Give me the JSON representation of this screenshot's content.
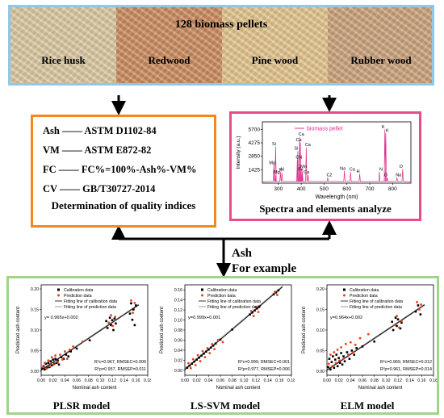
{
  "pellets": {
    "title": "128 biomass pellets",
    "types": [
      {
        "name": "Rice husk",
        "color": "#d9c7a0"
      },
      {
        "name": "Redwood",
        "color": "#c98a5e"
      },
      {
        "name": "Pine wood",
        "color": "#e2c48c"
      },
      {
        "name": "Rubber wood",
        "color": "#caa17a"
      }
    ]
  },
  "quality": {
    "rows": [
      {
        "index": "Ash",
        "dash": "——",
        "standard": "ASTM D1102-84"
      },
      {
        "index": "VM",
        "dash": "——",
        "standard": "ASTM E872-82"
      },
      {
        "index": "FC",
        "dash": "——",
        "standard": "FC%=100%-Ash%-VM%"
      },
      {
        "index": "CV",
        "dash": "——",
        "standard": "GB/T30727-2014"
      }
    ],
    "caption": "Determination of quality indices"
  },
  "spectra": {
    "caption": "Spectra and elements analyze",
    "chart_data": {
      "type": "line",
      "legend": "biomass pellet",
      "xlabel": "Wavelength (nm)",
      "ylabel": "Intensity (a.u.)",
      "xlim": [
        230,
        880
      ],
      "ylim": [
        0,
        6500
      ],
      "xticks": [
        300,
        400,
        500,
        600,
        700,
        800
      ],
      "yticks": [
        1425,
        2850,
        4275,
        5700
      ],
      "peaks": [
        {
          "x": 280,
          "y": 1900,
          "label": "Mg"
        },
        {
          "x": 286,
          "y": 900,
          "label": "Mg"
        },
        {
          "x": 288,
          "y": 3900,
          "label": "Si"
        },
        {
          "x": 309,
          "y": 1200,
          "label": "Al"
        },
        {
          "x": 316,
          "y": 1100,
          "label": "Ti"
        },
        {
          "x": 383,
          "y": 2500,
          "label": "CN"
        },
        {
          "x": 385,
          "y": 3400,
          "label": "Si"
        },
        {
          "x": 393,
          "y": 4900,
          "label": "Ca"
        },
        {
          "x": 396,
          "y": 4300,
          "label": "Ca"
        },
        {
          "x": 403,
          "y": 1500,
          "label": "Mn"
        },
        {
          "x": 405,
          "y": 1200,
          "label": "Fe"
        },
        {
          "x": 422,
          "y": 3800,
          "label": "Ca"
        },
        {
          "x": 430,
          "y": 900,
          "label": "Ca"
        },
        {
          "x": 516,
          "y": 600,
          "label": "C2"
        },
        {
          "x": 589,
          "y": 1300,
          "label": "Na"
        },
        {
          "x": 616,
          "y": 1200,
          "label": "Ca"
        },
        {
          "x": 656,
          "y": 1000,
          "label": "H"
        },
        {
          "x": 742,
          "y": 1200,
          "label": "N"
        },
        {
          "x": 766,
          "y": 5700,
          "label": "K"
        },
        {
          "x": 770,
          "y": 5300,
          "label": "K"
        },
        {
          "x": 777,
          "y": 600,
          "label": "O"
        },
        {
          "x": 819,
          "y": 600,
          "label": "Na"
        },
        {
          "x": 844,
          "y": 1500,
          "label": "O"
        }
      ]
    }
  },
  "example": {
    "line1": "Ash",
    "line2": "For example"
  },
  "models": [
    {
      "caption": "PLSR model",
      "equation": "y= 0.965x+0.002",
      "stats1": "R²c=0.967, RMSEC=0.009",
      "stats2": "R²p=0.957, RMSEP=0.011",
      "chart_data": {
        "type": "scatter",
        "xlabel": "Nominal ash content",
        "ylabel": "Predicted ash content",
        "xlim": [
          0,
          0.18
        ],
        "ylim": [
          -0.01,
          0.21
        ],
        "xticks": [
          0.0,
          0.02,
          0.04,
          0.06,
          0.08,
          0.1,
          0.12,
          0.14,
          0.16,
          0.18
        ],
        "yticks": [
          0.0,
          0.05,
          0.1,
          0.15,
          0.2
        ],
        "slope": 0.965,
        "intercept": 0.002,
        "legend": [
          "Calibration data",
          "Prediction data",
          "Fitting line of calibration data",
          "Fitting line of prediction data"
        ],
        "calibration": [
          [
            0.002,
            0.006
          ],
          [
            0.004,
            0.012
          ],
          [
            0.006,
            0.004
          ],
          [
            0.008,
            0.018
          ],
          [
            0.01,
            0.008
          ],
          [
            0.012,
            0.02
          ],
          [
            0.014,
            0.01
          ],
          [
            0.016,
            0.024
          ],
          [
            0.018,
            0.014
          ],
          [
            0.02,
            0.028
          ],
          [
            0.022,
            0.018
          ],
          [
            0.024,
            0.03
          ],
          [
            0.026,
            0.02
          ],
          [
            0.028,
            0.026
          ],
          [
            0.03,
            0.016
          ],
          [
            0.034,
            0.034
          ],
          [
            0.038,
            0.03
          ],
          [
            0.042,
            0.04
          ],
          [
            0.046,
            0.036
          ],
          [
            0.05,
            0.048
          ],
          [
            0.06,
            0.055
          ],
          [
            0.082,
            0.075
          ],
          [
            0.11,
            0.122
          ],
          [
            0.112,
            0.105
          ],
          [
            0.116,
            0.13
          ],
          [
            0.118,
            0.112
          ],
          [
            0.12,
            0.124
          ],
          [
            0.122,
            0.1
          ],
          [
            0.124,
            0.128
          ],
          [
            0.126,
            0.116
          ],
          [
            0.15,
            0.14
          ],
          [
            0.152,
            0.165
          ],
          [
            0.154,
            0.125
          ],
          [
            0.156,
            0.15
          ],
          [
            0.158,
            0.112
          ],
          [
            0.16,
            0.16
          ]
        ],
        "prediction": [
          [
            0.003,
            0.01
          ],
          [
            0.006,
            0.02
          ],
          [
            0.009,
            0.006
          ],
          [
            0.012,
            0.026
          ],
          [
            0.015,
            0.012
          ],
          [
            0.018,
            0.034
          ],
          [
            0.021,
            0.016
          ],
          [
            0.024,
            0.038
          ],
          [
            0.028,
            0.022
          ],
          [
            0.032,
            0.04
          ],
          [
            0.036,
            0.028
          ],
          [
            0.04,
            0.048
          ],
          [
            0.044,
            0.03
          ],
          [
            0.048,
            0.052
          ],
          [
            0.054,
            0.06
          ],
          [
            0.07,
            0.072
          ],
          [
            0.114,
            0.118
          ],
          [
            0.118,
            0.136
          ],
          [
            0.121,
            0.11
          ],
          [
            0.125,
            0.132
          ],
          [
            0.152,
            0.172
          ],
          [
            0.155,
            0.142
          ],
          [
            0.158,
            0.166
          ]
        ]
      }
    },
    {
      "caption": "LS-SVM model",
      "equation": "y=0.999x+0.001",
      "stats1": "R²c=0.999, RMSEC=0.001",
      "stats2": "R²p=0.977, RMSEP=0.006",
      "chart_data": {
        "type": "scatter",
        "xlabel": "Nominal ash content",
        "ylabel": "Predicted ash content",
        "xlim": [
          0,
          0.18
        ],
        "ylim": [
          -0.01,
          0.17
        ],
        "xticks": [
          0.0,
          0.02,
          0.04,
          0.06,
          0.08,
          0.1,
          0.12,
          0.14,
          0.16,
          0.18
        ],
        "yticks": [
          0.0,
          0.02,
          0.04,
          0.06,
          0.08,
          0.1,
          0.12,
          0.14,
          0.16
        ],
        "slope": 0.999,
        "intercept": 0.001,
        "legend": [
          "Calibration data",
          "Prediction data",
          "Fitting line of calibration data",
          "Fitting line of prediction data"
        ],
        "calibration": [
          [
            0.004,
            0.005
          ],
          [
            0.008,
            0.009
          ],
          [
            0.012,
            0.013
          ],
          [
            0.016,
            0.017
          ],
          [
            0.02,
            0.021
          ],
          [
            0.024,
            0.025
          ],
          [
            0.028,
            0.029
          ],
          [
            0.032,
            0.033
          ],
          [
            0.036,
            0.037
          ],
          [
            0.04,
            0.041
          ],
          [
            0.044,
            0.045
          ],
          [
            0.048,
            0.049
          ],
          [
            0.052,
            0.053
          ],
          [
            0.06,
            0.061
          ],
          [
            0.08,
            0.081
          ],
          [
            0.11,
            0.111
          ],
          [
            0.114,
            0.115
          ],
          [
            0.118,
            0.119
          ],
          [
            0.122,
            0.123
          ],
          [
            0.126,
            0.127
          ],
          [
            0.15,
            0.151
          ],
          [
            0.154,
            0.155
          ],
          [
            0.158,
            0.159
          ]
        ],
        "prediction": [
          [
            0.006,
            0.014
          ],
          [
            0.01,
            0.004
          ],
          [
            0.014,
            0.022
          ],
          [
            0.018,
            0.01
          ],
          [
            0.022,
            0.03
          ],
          [
            0.026,
            0.018
          ],
          [
            0.03,
            0.038
          ],
          [
            0.034,
            0.026
          ],
          [
            0.038,
            0.044
          ],
          [
            0.042,
            0.034
          ],
          [
            0.046,
            0.052
          ],
          [
            0.05,
            0.042
          ],
          [
            0.056,
            0.06
          ],
          [
            0.064,
            0.056
          ],
          [
            0.112,
            0.118
          ],
          [
            0.116,
            0.108
          ],
          [
            0.12,
            0.126
          ],
          [
            0.124,
            0.116
          ],
          [
            0.152,
            0.156
          ],
          [
            0.156,
            0.15
          ]
        ]
      }
    },
    {
      "caption": "ELM model",
      "equation": "y=0.964x+0.002",
      "stats1": "R²c=0.969, RMSEC=0.012",
      "stats2": "R²p=0.961, RMSEP=0.014",
      "chart_data": {
        "type": "scatter",
        "xlabel": "Nominal ash content",
        "ylabel": "Predicted ash content",
        "xlim": [
          0,
          0.18
        ],
        "ylim": [
          -0.01,
          0.21
        ],
        "xticks": [
          0.0,
          0.02,
          0.04,
          0.06,
          0.08,
          0.1,
          0.12,
          0.14,
          0.16,
          0.18
        ],
        "yticks": [
          0.0,
          0.05,
          0.1,
          0.15,
          0.2
        ],
        "slope": 0.964,
        "intercept": 0.002,
        "legend": [
          "Calibration data",
          "Prediction data",
          "Fitting line of calibration data",
          "Fitting line of prediction data"
        ],
        "calibration": [
          [
            0.002,
            0.01
          ],
          [
            0.004,
            0.03
          ],
          [
            0.006,
            0.004
          ],
          [
            0.008,
            0.022
          ],
          [
            0.01,
            0.036
          ],
          [
            0.012,
            0.008
          ],
          [
            0.014,
            0.028
          ],
          [
            0.016,
            0.04
          ],
          [
            0.018,
            0.012
          ],
          [
            0.02,
            0.032
          ],
          [
            0.022,
            0.02
          ],
          [
            0.024,
            0.044
          ],
          [
            0.026,
            0.016
          ],
          [
            0.028,
            0.036
          ],
          [
            0.03,
            0.024
          ],
          [
            0.034,
            0.046
          ],
          [
            0.038,
            0.03
          ],
          [
            0.042,
            0.05
          ],
          [
            0.046,
            0.04
          ],
          [
            0.05,
            0.056
          ],
          [
            0.06,
            0.06
          ],
          [
            0.08,
            0.072
          ],
          [
            0.11,
            0.12
          ],
          [
            0.112,
            0.1
          ],
          [
            0.116,
            0.13
          ],
          [
            0.118,
            0.11
          ],
          [
            0.12,
            0.126
          ],
          [
            0.124,
            0.104
          ],
          [
            0.126,
            0.118
          ],
          [
            0.15,
            0.145
          ],
          [
            0.154,
            0.16
          ],
          [
            0.158,
            0.138
          ]
        ],
        "prediction": [
          [
            0.003,
            0.018
          ],
          [
            0.006,
            0.04
          ],
          [
            0.009,
            0.012
          ],
          [
            0.012,
            0.046
          ],
          [
            0.015,
            0.02
          ],
          [
            0.018,
            0.052
          ],
          [
            0.021,
            0.026
          ],
          [
            0.024,
            0.058
          ],
          [
            0.028,
            0.03
          ],
          [
            0.032,
            0.066
          ],
          [
            0.036,
            0.04
          ],
          [
            0.04,
            0.07
          ],
          [
            0.044,
            0.046
          ],
          [
            0.048,
            0.064
          ],
          [
            0.056,
            0.08
          ],
          [
            0.07,
            0.09
          ],
          [
            0.114,
            0.112
          ],
          [
            0.118,
            0.134
          ],
          [
            0.122,
            0.106
          ],
          [
            0.126,
            0.122
          ],
          [
            0.152,
            0.168
          ],
          [
            0.156,
            0.15
          ],
          [
            0.159,
            0.162
          ]
        ]
      }
    }
  ]
}
